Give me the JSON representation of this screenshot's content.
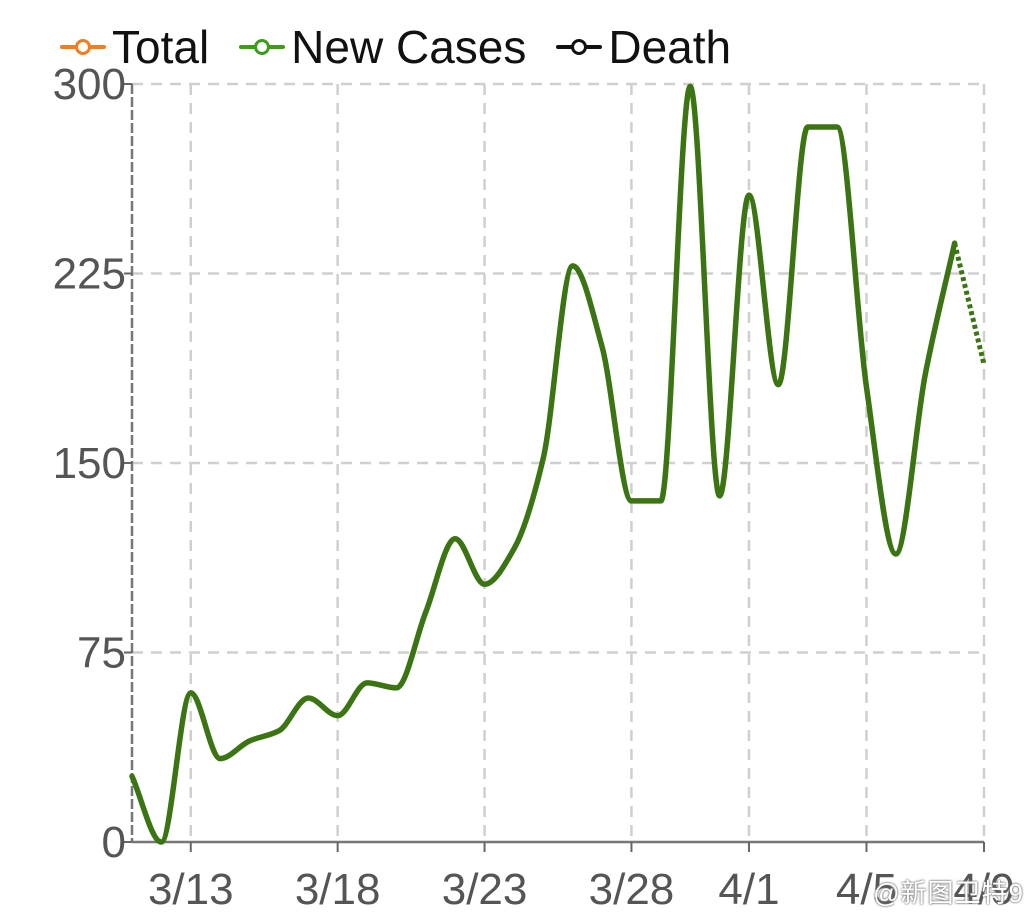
{
  "chart_data": {
    "type": "line",
    "title": "",
    "xlabel": "",
    "ylabel": "",
    "ylim": [
      0,
      300
    ],
    "yticks": [
      0,
      75,
      150,
      225,
      300
    ],
    "x_tick_labels": [
      "3/13",
      "3/18",
      "3/23",
      "3/28",
      "4/1",
      "4/5",
      "4/9"
    ],
    "x_tick_positions": [
      3,
      8,
      13,
      18,
      22,
      26,
      30
    ],
    "xlim": [
      1,
      30
    ],
    "grid": true,
    "legend": {
      "position": "top-left",
      "entries": [
        {
          "name": "Total",
          "color": "#f07c24"
        },
        {
          "name": "New Cases",
          "color": "#3d9b1e"
        },
        {
          "name": "Death",
          "color": "#111111"
        }
      ]
    },
    "series": [
      {
        "name": "New Cases",
        "color": "#3b7412",
        "x": [
          1,
          2,
          3,
          4,
          5,
          6,
          7,
          8,
          9,
          10,
          11,
          12,
          13,
          14,
          15,
          16,
          17,
          18,
          19,
          20,
          21,
          22,
          23,
          24,
          25,
          26,
          27,
          28,
          29
        ],
        "values": [
          26,
          0,
          59,
          33,
          40,
          44,
          57,
          50,
          63,
          61,
          91,
          120,
          102,
          116,
          152,
          228,
          196,
          135,
          135,
          299,
          137,
          256,
          181,
          283,
          283,
          180,
          114,
          185,
          237
        ]
      },
      {
        "name": "New Cases (projected)",
        "color": "#3b7412",
        "dashed": true,
        "x": [
          29,
          30
        ],
        "values": [
          237,
          189
        ]
      }
    ]
  },
  "watermark": "@新图卫特9"
}
